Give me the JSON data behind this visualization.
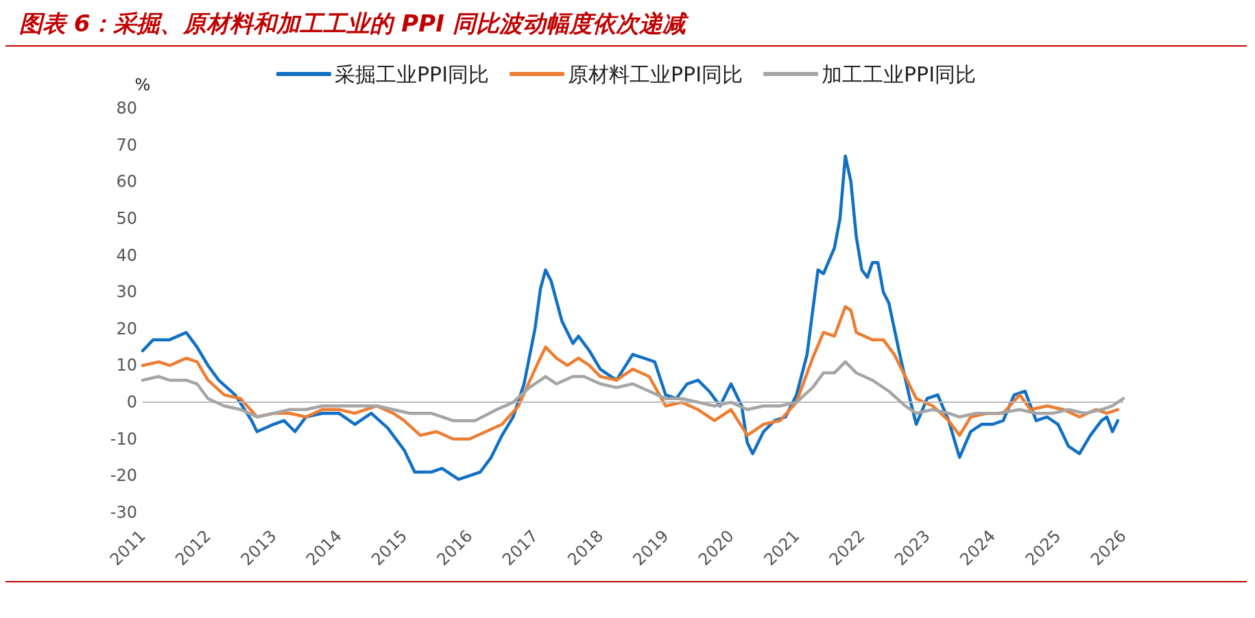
{
  "chart_data": {
    "type": "line",
    "title": "图表 6：采掘、原材料和加工工业的 PPI 同比波动幅度依次递减",
    "ylabel": "%",
    "legend": "top",
    "marker": "none",
    "line_style": "solid",
    "grid": false,
    "xlim": [
      "2011-01",
      "2026-01"
    ],
    "xticks": [
      "2011",
      "2012",
      "2013",
      "2014",
      "2015",
      "2016",
      "2017",
      "2018",
      "2019",
      "2020",
      "2021",
      "2022",
      "2023",
      "2024",
      "2025",
      "2026"
    ],
    "ylim": [
      -30,
      80
    ],
    "ref_lines": [
      {
        "axis": "y",
        "value": 0,
        "color": "#bbbbbb"
      }
    ],
    "yticks": [
      -30,
      -20,
      -10,
      0,
      10,
      20,
      30,
      40,
      50,
      60,
      70,
      80
    ],
    "series": [
      {
        "name": "采掘工业PPI同比",
        "color": "#1170c4",
        "x": [
          "2011-01",
          "2011-03",
          "2011-06",
          "2011-09",
          "2011-11",
          "2012-01",
          "2012-03",
          "2012-06",
          "2012-09",
          "2012-10",
          "2013-01",
          "2013-03",
          "2013-05",
          "2013-07",
          "2013-10",
          "2014-01",
          "2014-04",
          "2014-07",
          "2014-10",
          "2015-01",
          "2015-03",
          "2015-06",
          "2015-08",
          "2015-11",
          "2016-01",
          "2016-03",
          "2016-05",
          "2016-07",
          "2016-09",
          "2016-11",
          "2017-01",
          "2017-02",
          "2017-03",
          "2017-04",
          "2017-06",
          "2017-08",
          "2017-09",
          "2017-11",
          "2018-01",
          "2018-04",
          "2018-07",
          "2018-09",
          "2018-11",
          "2019-01",
          "2019-03",
          "2019-05",
          "2019-07",
          "2019-09",
          "2019-11",
          "2020-01",
          "2020-03",
          "2020-04",
          "2020-05",
          "2020-07",
          "2020-09",
          "2020-11",
          "2021-01",
          "2021-03",
          "2021-05",
          "2021-06",
          "2021-08",
          "2021-09",
          "2021-10",
          "2021-11",
          "2021-12",
          "2022-01",
          "2022-02",
          "2022-03",
          "2022-04",
          "2022-05",
          "2022-06",
          "2022-08",
          "2022-10",
          "2022-11",
          "2023-01",
          "2023-03",
          "2023-05",
          "2023-07",
          "2023-09",
          "2023-11",
          "2024-01",
          "2024-03",
          "2024-05",
          "2024-07",
          "2024-09",
          "2024-11",
          "2025-01",
          "2025-03",
          "2025-05",
          "2025-07",
          "2025-09",
          "2025-10",
          "2025-11",
          "2025-12"
        ],
        "values": [
          14,
          17,
          17,
          19,
          15,
          10,
          6,
          2,
          -5,
          -8,
          -6,
          -5,
          -8,
          -4,
          -3,
          -3,
          -6,
          -3,
          -7,
          -13,
          -19,
          -19,
          -18,
          -21,
          -20,
          -19,
          -15,
          -9,
          -4,
          5,
          20,
          31,
          36,
          33,
          22,
          16,
          18,
          14,
          9,
          6,
          13,
          12,
          11,
          2,
          1,
          5,
          6,
          3,
          -1,
          5,
          -1,
          -11,
          -14,
          -8,
          -5,
          -4,
          2,
          13,
          36,
          35,
          42,
          50,
          67,
          60,
          45,
          36,
          34,
          38,
          38,
          30,
          27,
          13,
          0,
          -6,
          1,
          2,
          -5,
          -15,
          -8,
          -6,
          -6,
          -5,
          2,
          3,
          -5,
          -4,
          -6,
          -12,
          -14,
          -9,
          -5,
          -4,
          -8,
          -5
        ]
      },
      {
        "name": "原材料工业PPI同比",
        "color": "#ed7d31",
        "x": [
          "2011-01",
          "2011-04",
          "2011-06",
          "2011-09",
          "2011-11",
          "2012-01",
          "2012-04",
          "2012-07",
          "2012-10",
          "2013-01",
          "2013-04",
          "2013-07",
          "2013-10",
          "2014-01",
          "2014-04",
          "2014-08",
          "2014-11",
          "2015-01",
          "2015-04",
          "2015-07",
          "2015-10",
          "2016-01",
          "2016-04",
          "2016-07",
          "2016-10",
          "2017-01",
          "2017-03",
          "2017-05",
          "2017-07",
          "2017-09",
          "2017-11",
          "2018-01",
          "2018-04",
          "2018-07",
          "2018-10",
          "2019-01",
          "2019-04",
          "2019-07",
          "2019-10",
          "2020-01",
          "2020-04",
          "2020-07",
          "2020-10",
          "2021-01",
          "2021-04",
          "2021-06",
          "2021-08",
          "2021-10",
          "2021-11",
          "2021-12",
          "2022-03",
          "2022-05",
          "2022-07",
          "2022-09",
          "2022-11",
          "2023-02",
          "2023-05",
          "2023-07",
          "2023-09",
          "2023-12",
          "2024-03",
          "2024-06",
          "2024-08",
          "2024-11",
          "2025-02",
          "2025-05",
          "2025-08",
          "2025-10",
          "2025-12"
        ],
        "values": [
          10,
          11,
          10,
          12,
          11,
          6,
          2,
          1,
          -4,
          -3,
          -3,
          -4,
          -2,
          -2,
          -3,
          -1,
          -3,
          -5,
          -9,
          -8,
          -10,
          -10,
          -8,
          -6,
          -1,
          9,
          15,
          12,
          10,
          12,
          10,
          7,
          6,
          9,
          7,
          -1,
          0,
          -2,
          -5,
          -2,
          -9,
          -6,
          -5,
          0,
          12,
          19,
          18,
          26,
          25,
          19,
          17,
          17,
          13,
          7,
          1,
          -1,
          -5,
          -9,
          -4,
          -3,
          -3,
          2,
          -2,
          -1,
          -2,
          -4,
          -2,
          -3,
          -2
        ]
      },
      {
        "name": "加工工业PPI同比",
        "color": "#a5a5a5",
        "x": [
          "2011-01",
          "2011-04",
          "2011-06",
          "2011-09",
          "2011-11",
          "2012-01",
          "2012-04",
          "2012-07",
          "2012-10",
          "2013-01",
          "2013-04",
          "2013-07",
          "2013-10",
          "2014-01",
          "2014-04",
          "2014-08",
          "2014-11",
          "2015-02",
          "2015-06",
          "2015-10",
          "2016-02",
          "2016-06",
          "2016-09",
          "2016-12",
          "2017-03",
          "2017-05",
          "2017-08",
          "2017-10",
          "2018-01",
          "2018-04",
          "2018-07",
          "2018-10",
          "2019-01",
          "2019-04",
          "2019-07",
          "2019-10",
          "2020-01",
          "2020-04",
          "2020-07",
          "2020-10",
          "2021-01",
          "2021-04",
          "2021-06",
          "2021-08",
          "2021-10",
          "2021-12",
          "2022-03",
          "2022-06",
          "2022-09",
          "2022-11",
          "2023-02",
          "2023-05",
          "2023-07",
          "2023-10",
          "2024-02",
          "2024-06",
          "2024-09",
          "2024-12",
          "2025-03",
          "2025-06",
          "2025-09",
          "2025-11",
          "2026-01"
        ],
        "values": [
          6,
          7,
          6,
          6,
          5,
          1,
          -1,
          -2,
          -4,
          -3,
          -2,
          -2,
          -1,
          -1,
          -1,
          -1,
          -2,
          -3,
          -3,
          -5,
          -5,
          -2,
          0,
          4,
          7,
          5,
          7,
          7,
          5,
          4,
          5,
          3,
          1,
          1,
          0,
          -1,
          0,
          -2,
          -1,
          -1,
          0,
          4,
          8,
          8,
          11,
          8,
          6,
          3,
          -1,
          -3,
          -2,
          -3,
          -4,
          -3,
          -3,
          -2,
          -3,
          -3,
          -2,
          -3,
          -2,
          -1,
          1
        ]
      }
    ]
  }
}
